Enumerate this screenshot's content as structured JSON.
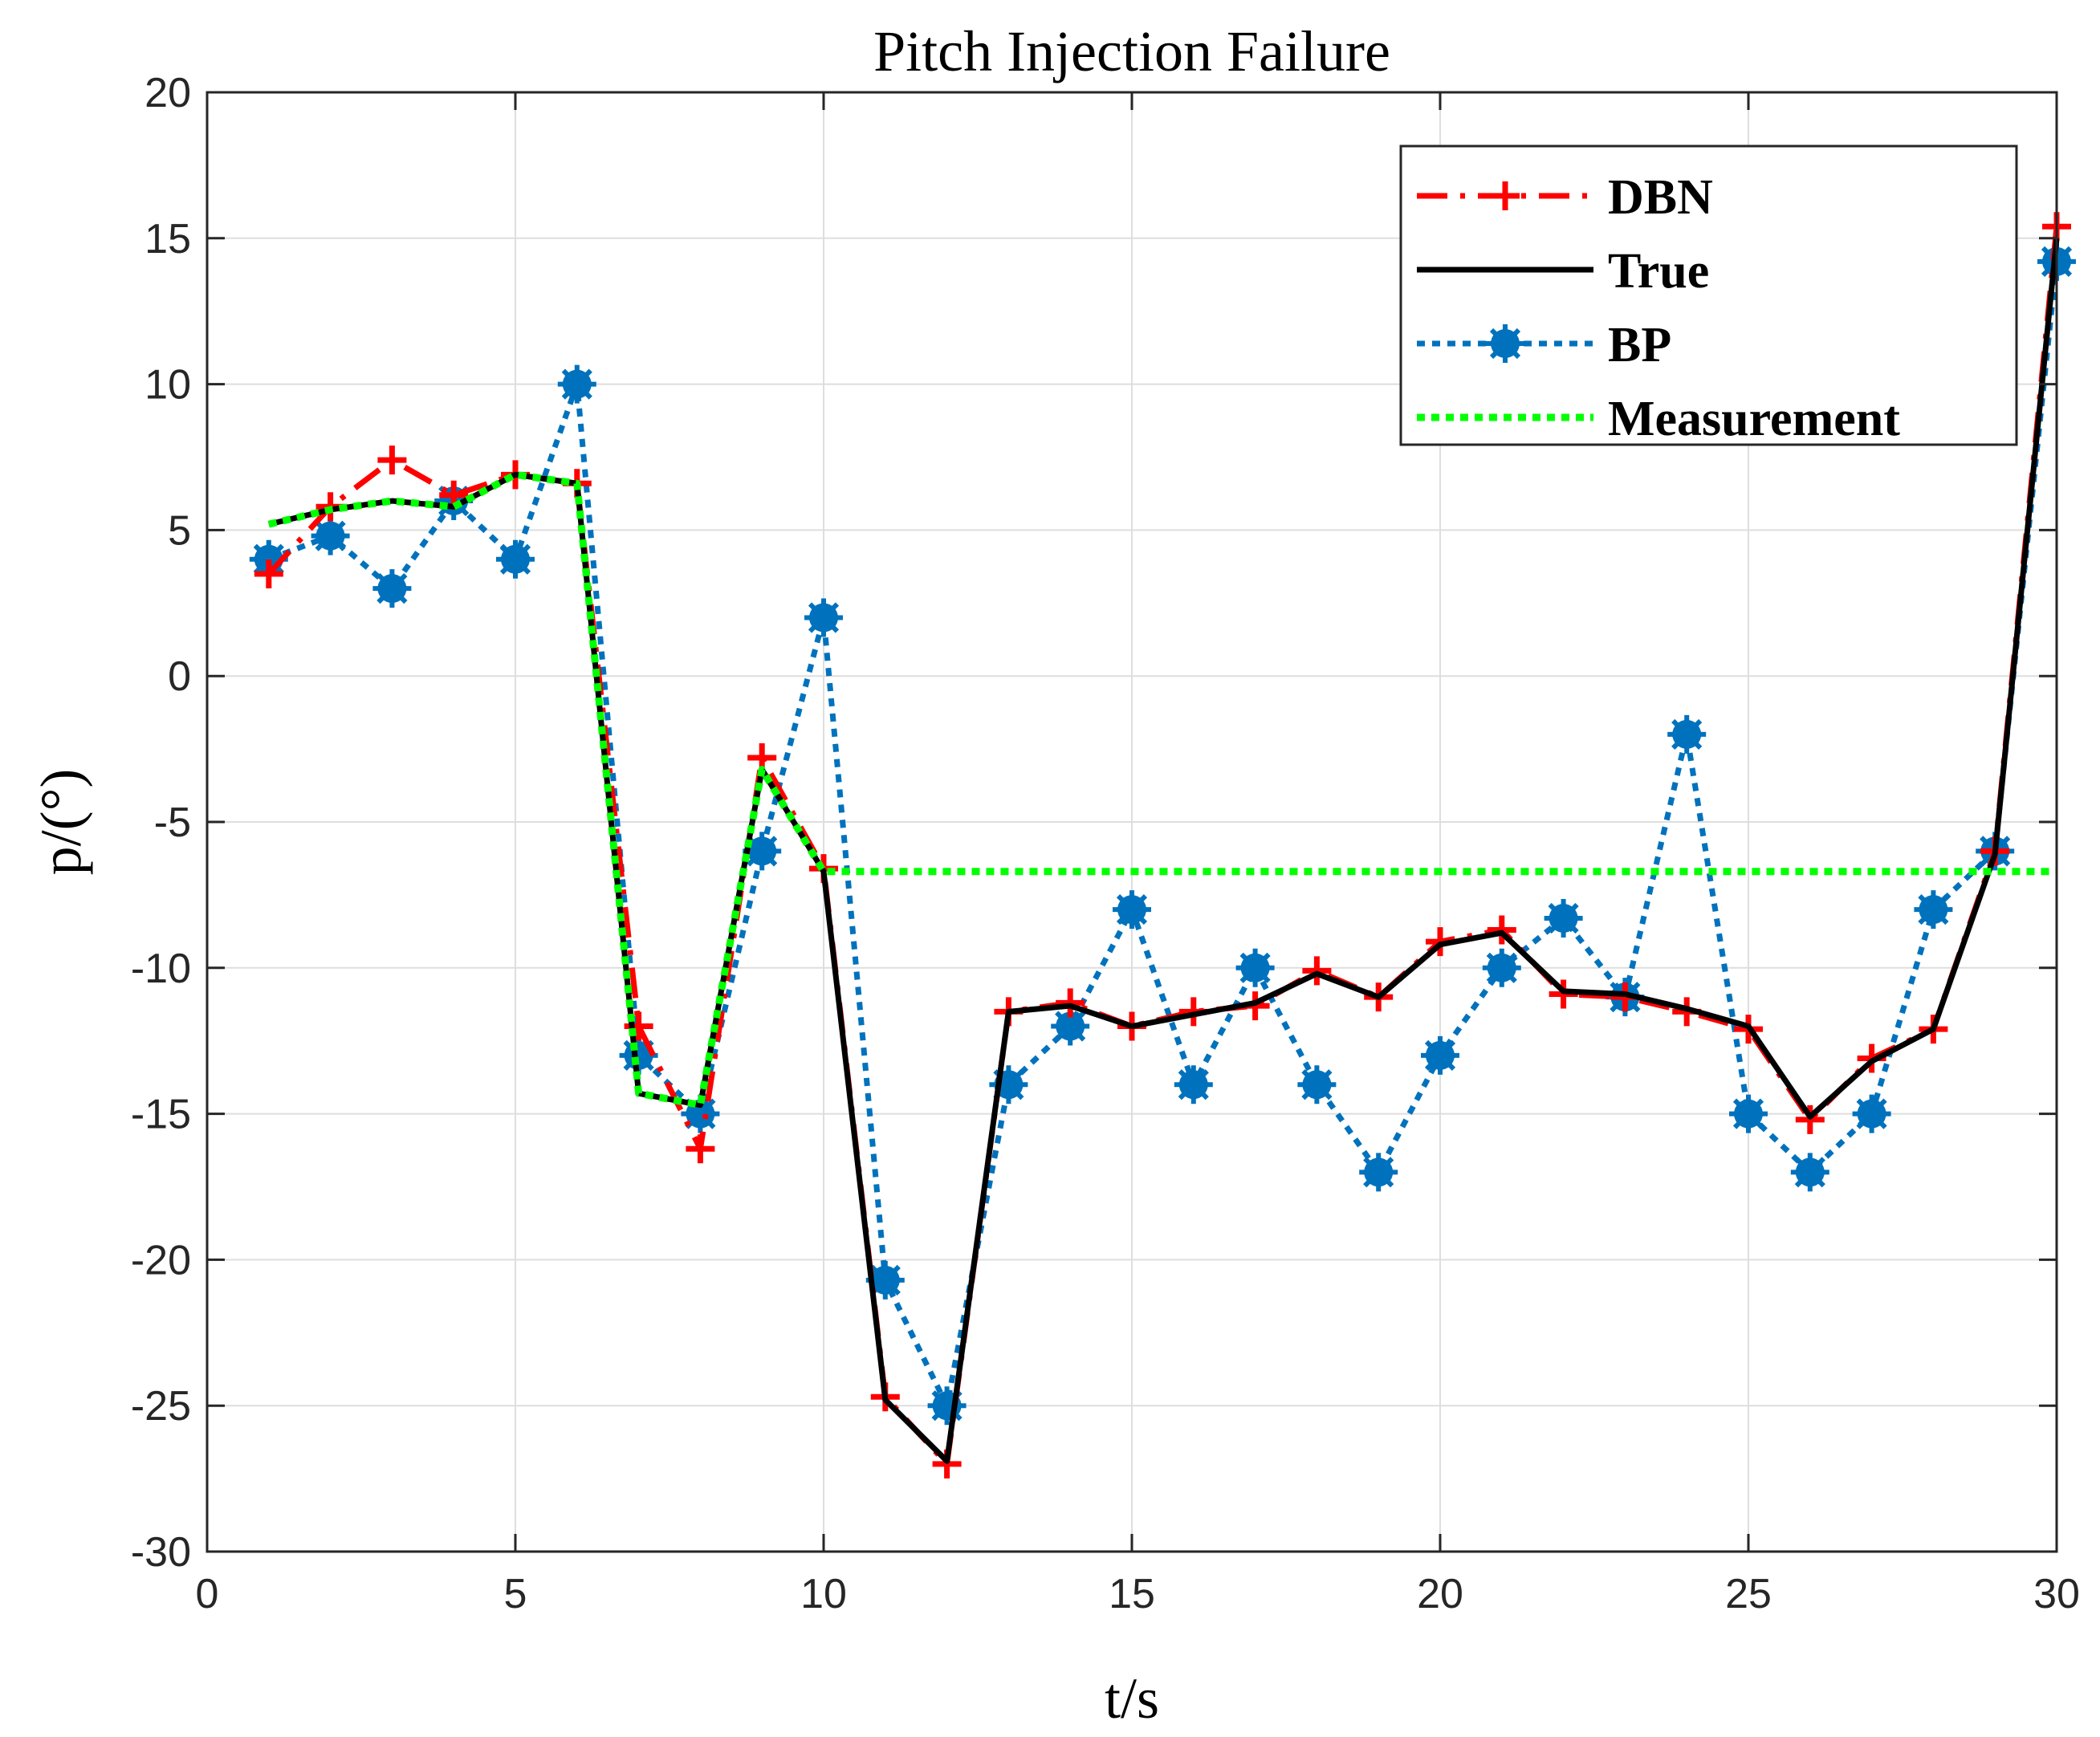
{
  "chart_data": {
    "type": "line",
    "title": "Pitch Injection Failure",
    "xlabel": "t/s",
    "ylabel": "p/(°)",
    "xlim": [
      0,
      30
    ],
    "ylim": [
      -30,
      20
    ],
    "xticks": [
      0,
      5,
      10,
      15,
      20,
      25,
      30
    ],
    "yticks": [
      -30,
      -25,
      -20,
      -15,
      -10,
      -5,
      0,
      5,
      10,
      15,
      20
    ],
    "xtick_labels": [
      "0",
      "5",
      "10",
      "15",
      "20",
      "25",
      "30"
    ],
    "ytick_labels": [
      "-30",
      "-25",
      "-20",
      "-15",
      "-10",
      "-5",
      "0",
      "5",
      "10",
      "15",
      "20"
    ],
    "grid": true,
    "legend_position": "top-right",
    "series": [
      {
        "name": "DBN",
        "color": "#ff0000",
        "style": "dash-dot",
        "marker": "plus",
        "x": [
          1,
          2,
          3,
          4,
          5,
          6,
          7,
          8,
          9,
          10,
          11,
          12,
          13,
          14,
          15,
          16,
          17,
          18,
          19,
          20,
          21,
          22,
          23,
          24,
          25,
          26,
          27,
          28,
          29,
          30
        ],
        "values": [
          3.5,
          5.8,
          7.4,
          6.2,
          6.9,
          6.6,
          -12,
          -16.2,
          -2.8,
          -6.6,
          -24.7,
          -27,
          -11.5,
          -11.2,
          -12,
          -11.5,
          -11.3,
          -10.1,
          -11,
          -9.1,
          -8.7,
          -10.9,
          -11,
          -11.5,
          -12.1,
          -15.2,
          -13.1,
          -12.1,
          -6,
          15.4
        ]
      },
      {
        "name": "True",
        "color": "#000000",
        "style": "solid",
        "marker": "none",
        "x": [
          1,
          2,
          3,
          4,
          5,
          6,
          7,
          8,
          9,
          10,
          11,
          12,
          13,
          14,
          15,
          16,
          17,
          18,
          19,
          20,
          21,
          22,
          23,
          24,
          25,
          26,
          27,
          28,
          29,
          30
        ],
        "values": [
          5.2,
          5.7,
          6,
          5.8,
          6.9,
          6.6,
          -14.3,
          -14.7,
          -3.2,
          -6.7,
          -24.8,
          -26.9,
          -11.5,
          -11.3,
          -12,
          -11.6,
          -11.2,
          -10.2,
          -11,
          -9.2,
          -8.8,
          -10.8,
          -10.9,
          -11.4,
          -12,
          -15.1,
          -13.2,
          -12.1,
          -6.1,
          15
        ]
      },
      {
        "name": "BP",
        "color": "#0072bd",
        "style": "dotted",
        "marker": "asterisk",
        "x": [
          1,
          2,
          3,
          4,
          5,
          6,
          7,
          8,
          9,
          10,
          11,
          12,
          13,
          14,
          15,
          16,
          17,
          18,
          19,
          20,
          21,
          22,
          23,
          24,
          25,
          26,
          27,
          28,
          29,
          30
        ],
        "values": [
          4,
          4.8,
          3,
          6,
          4,
          10,
          -13,
          -15,
          -6,
          2,
          -20.7,
          -25,
          -14,
          -12,
          -8,
          -14,
          -10,
          -14,
          -17,
          -13,
          -10,
          -8.3,
          -11,
          -2,
          -15,
          -17,
          -15,
          -8,
          -6,
          14.2
        ]
      },
      {
        "name": "Measurement",
        "color": "#00ff00",
        "style": "dotted",
        "marker": "none",
        "x": [
          1,
          2,
          3,
          4,
          5,
          6,
          7,
          8,
          9,
          10,
          11,
          12,
          13,
          14,
          15,
          16,
          17,
          18,
          19,
          20,
          21,
          22,
          23,
          24,
          25,
          26,
          27,
          28,
          29,
          30
        ],
        "values": [
          5.2,
          5.7,
          6,
          5.8,
          6.9,
          6.6,
          -14.3,
          -14.7,
          -3.2,
          -6.7,
          -6.7,
          -6.7,
          -6.7,
          -6.7,
          -6.7,
          -6.7,
          -6.7,
          -6.7,
          -6.7,
          -6.7,
          -6.7,
          -6.7,
          -6.7,
          -6.7,
          -6.7,
          -6.7,
          -6.7,
          -6.7,
          -6.7,
          -6.7
        ]
      }
    ]
  }
}
